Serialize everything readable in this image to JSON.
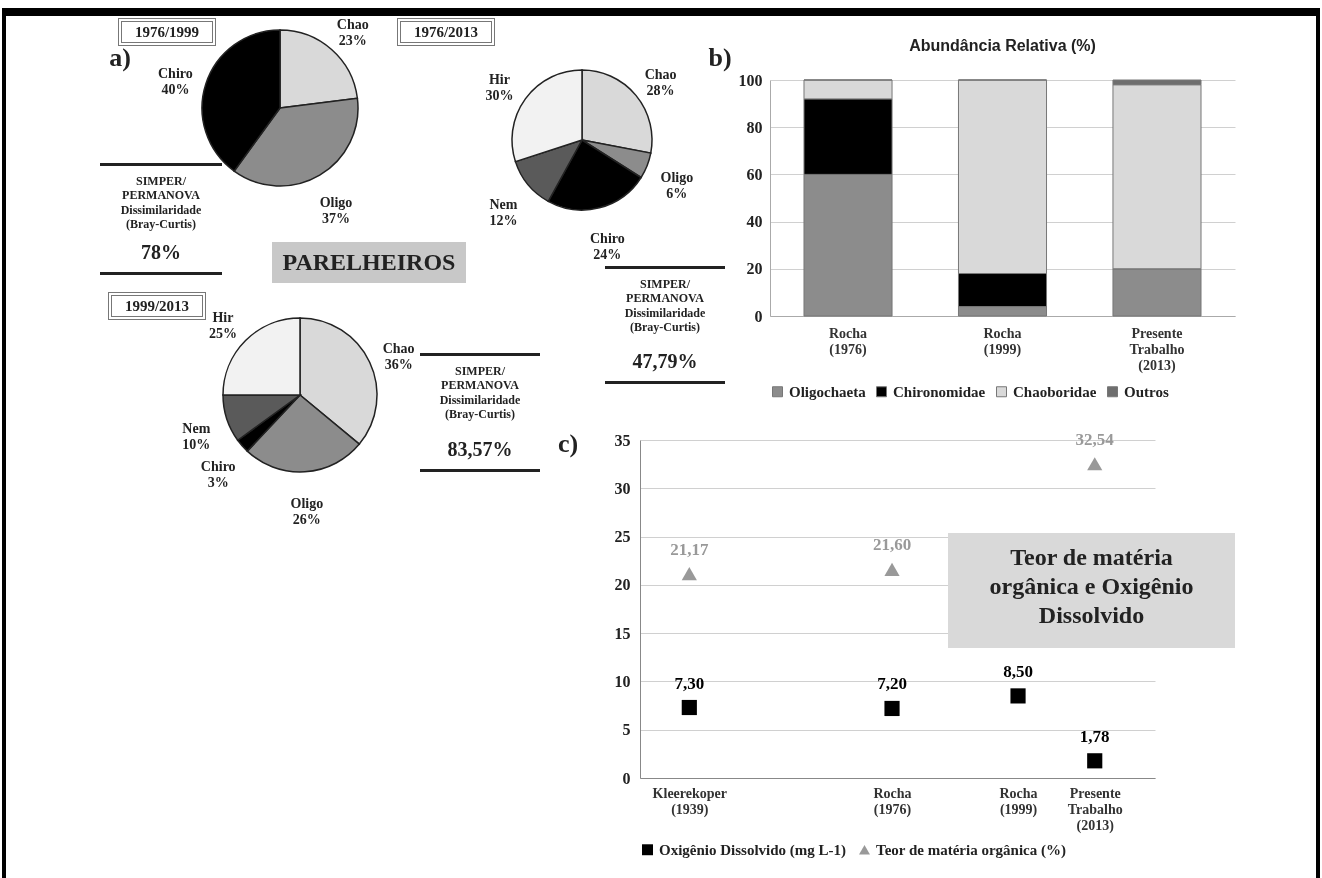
{
  "chart_data": [
    {
      "type": "pie",
      "title": "1976/1999",
      "categories": [
        "Chao",
        "Oligo",
        "Chiro"
      ],
      "values": [
        23,
        37,
        40
      ],
      "value_labels": [
        "23%",
        "37%",
        "40%"
      ],
      "colors": [
        "#d9d9d9",
        "#8c8c8c",
        "#000000"
      ],
      "annotations": [
        "a)",
        "SIMPER/\nPERMANOVA\nDissimilaridade\n(Bray-Curtis)",
        "78%",
        "PARELHEIROS"
      ]
    },
    {
      "type": "pie",
      "title": "1976/2013",
      "categories": [
        "Chao",
        "Oligo",
        "Chiro",
        "Nem",
        "Hir"
      ],
      "values": [
        28,
        6,
        24,
        12,
        30
      ],
      "value_labels": [
        "28%",
        "6%",
        "24%",
        "12%",
        "30%"
      ],
      "colors": [
        "#d9d9d9",
        "#8c8c8c",
        "#000000",
        "#5a5a5a",
        "#f2f2f2"
      ],
      "annotations": [
        "SIMPER/\nPERMANOVA\nDissimilaridade\n(Bray-Curtis)",
        "47,79%"
      ]
    },
    {
      "type": "pie",
      "title": "1999/2013",
      "categories": [
        "Chao",
        "Oligo",
        "Chiro",
        "Nem",
        "Hir"
      ],
      "values": [
        36,
        26,
        3,
        10,
        25
      ],
      "value_labels": [
        "36%",
        "26%",
        "3%",
        "10%",
        "25%"
      ],
      "colors": [
        "#d9d9d9",
        "#8c8c8c",
        "#000000",
        "#5a5a5a",
        "#f2f2f2"
      ],
      "annotations": [
        "SIMPER/\nPERMANOVA\nDissimilaridade\n(Bray-Curtis)",
        "83,57%"
      ]
    },
    {
      "type": "bar",
      "title": "Abundância Relativa (%)",
      "categories": [
        "Rocha\n(1976)",
        "Rocha\n(1999)",
        "Presente\nTrabalho\n(2013)"
      ],
      "stacked": true,
      "ylim": [
        0,
        100
      ],
      "yticks": [
        0,
        20,
        40,
        60,
        80,
        100
      ],
      "grid": "y",
      "legend": "bottom",
      "annotations": [
        "b)"
      ],
      "series": [
        {
          "name": "Oligochaeta",
          "color": "#8c8c8c",
          "values": [
            60,
            4,
            20
          ]
        },
        {
          "name": "Chironomidae",
          "color": "#000000",
          "values": [
            32,
            14,
            0
          ]
        },
        {
          "name": "Chaoboridae",
          "color": "#d9d9d9",
          "values": [
            8,
            82,
            78
          ]
        },
        {
          "name": "Outros",
          "color": "#6e6e6e",
          "values": [
            0,
            0,
            2
          ]
        }
      ]
    },
    {
      "type": "scatter",
      "title": "Teor de matéria orgânica e Oxigênio Dissolvido",
      "x": [
        1939,
        1976,
        1999,
        2013
      ],
      "xlim": [
        1930,
        2024
      ],
      "xticks": [
        {
          "value": 1939,
          "label": "Kleerekoper\n(1939)"
        },
        {
          "value": 1976,
          "label": "Rocha\n(1976)"
        },
        {
          "value": 1999,
          "label": "Rocha\n(1999)"
        },
        {
          "value": 2013,
          "label": "Presente\nTrabalho\n(2013)"
        }
      ],
      "ylim": [
        0,
        35
      ],
      "yticks": [
        0,
        5,
        10,
        15,
        20,
        25,
        30,
        35
      ],
      "grid": "y",
      "legend": "bottom",
      "annotations": [
        "c)"
      ],
      "series": [
        {
          "name": "Oxigênio Dissolvido (mg L-1)",
          "color": "#000000",
          "marker": "square",
          "values": [
            7.3,
            7.2,
            8.5,
            1.78
          ],
          "value_labels": [
            "7,30",
            "7,20",
            "8,50",
            "1,78"
          ]
        },
        {
          "name": "Teor de matéria orgânica (%)",
          "color": "#999999",
          "marker": "triangle",
          "values": [
            21.17,
            21.6,
            null,
            32.54
          ],
          "value_labels": [
            "21,17",
            "21,60",
            null,
            "32,54"
          ]
        }
      ]
    }
  ]
}
